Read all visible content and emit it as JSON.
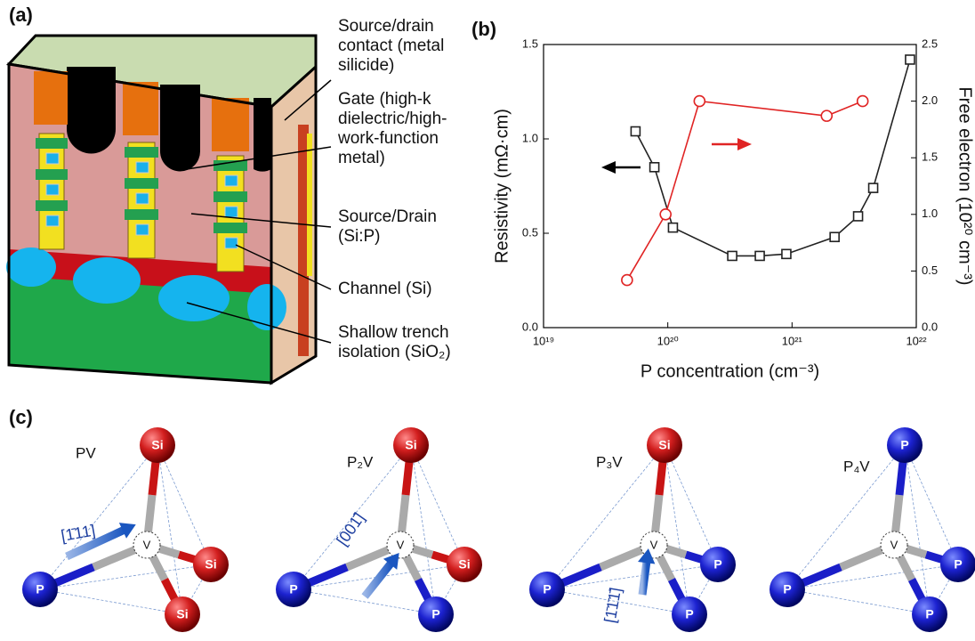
{
  "panel_a": {
    "label": "(a)",
    "annotations": [
      {
        "lines": [
          "Source/drain",
          "contact (metal",
          "silicide)"
        ]
      },
      {
        "lines": [
          "Gate (high-k",
          "dielectric/high-",
          "work-function",
          "metal)"
        ]
      },
      {
        "lines": [
          "Source/Drain",
          "(Si:P)"
        ]
      },
      {
        "lines": [
          "Channel (Si)"
        ]
      },
      {
        "lines": [
          "Shallow trench",
          "isolation (SiO₂)"
        ]
      }
    ]
  },
  "chart_data": {
    "type": "line",
    "label": "(b)",
    "x_label": "P concentration (cm⁻³)",
    "y_label": "Resistivity (mΩ·cm)",
    "y2_label": "Free electron (10²⁰ cm⁻³)",
    "log_x": true,
    "xlim": [
      1e+19,
      1e+22
    ],
    "xticks": [
      {
        "value": 1e+19,
        "label": "10¹⁹"
      },
      {
        "value": 1e+20,
        "label": "10²⁰"
      },
      {
        "value": 1e+21,
        "label": "10²¹"
      },
      {
        "value": 1e+22,
        "label": "10²²"
      }
    ],
    "ylim": [
      0,
      1.5
    ],
    "yticks": [
      {
        "value": 0,
        "label": "0.0"
      },
      0.5,
      {
        "value": 1,
        "label": "1.0"
      },
      1.5
    ],
    "y2lim": [
      0,
      2.5
    ],
    "y2ticks": [
      {
        "value": 0,
        "label": "0.0"
      },
      0.5,
      {
        "value": 1,
        "label": "1.0"
      },
      1.5,
      {
        "value": 2,
        "label": "2.0"
      },
      2.5
    ],
    "series": [
      {
        "color": "#222222",
        "marker": "square",
        "x": [
          5.5e+19,
          7.8e+19,
          1.1e+20,
          3.3e+20,
          5.5e+20,
          9e+20,
          2.2e+21,
          3.4e+21,
          4.5e+21,
          8.9e+21
        ],
        "values": [
          1.04,
          0.85,
          0.53,
          0.38,
          0.38,
          0.39,
          0.48,
          0.59,
          0.74,
          1.42
        ]
      },
      {
        "color": "#e02424",
        "marker": "circle",
        "axis": "y2",
        "x": [
          4.7e+19,
          9.6e+19,
          1.8e+20,
          1.9e+21,
          3.7e+21
        ],
        "values": [
          0.42,
          1.0,
          2.0,
          1.87,
          2.0
        ]
      }
    ]
  },
  "panel_c": {
    "label": "(c)",
    "structures": [
      {
        "name": "PV",
        "direction": "[1̄11]",
        "center": "V",
        "atoms": [
          "Si",
          "Si",
          "Si",
          "P"
        ]
      },
      {
        "name": "P₂V",
        "direction": "[001̄]",
        "center": "V",
        "atoms": [
          "Si",
          "Si",
          "P",
          "P"
        ]
      },
      {
        "name": "P₃V",
        "direction": "[1̄1̄1̄]",
        "center": "V",
        "atoms": [
          "Si",
          "P",
          "P",
          "P"
        ]
      },
      {
        "name": "P₄V",
        "center": "V",
        "atoms": [
          "P",
          "P",
          "P",
          "P"
        ]
      }
    ]
  }
}
